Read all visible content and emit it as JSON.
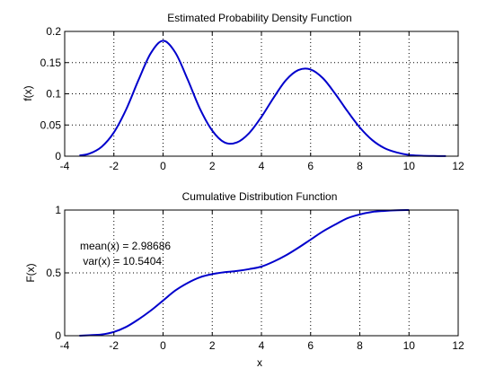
{
  "colors": {
    "line": "#0000cc",
    "axes": "#000000",
    "grid": "#000000",
    "background": "#ffffff"
  },
  "chart_data": [
    {
      "type": "line",
      "title": "Estimated Probability Density Function",
      "xlabel": "",
      "ylabel": "f(x)",
      "xlim": [
        -4,
        12
      ],
      "ylim": [
        0,
        0.2
      ],
      "xticks": [
        "-4",
        "-2",
        "0",
        "2",
        "4",
        "6",
        "8",
        "10",
        "12"
      ],
      "yticks": [
        "0",
        "0.05",
        "0.1",
        "0.15",
        "0.2"
      ],
      "grid": true,
      "series": [
        {
          "x": [
            -3.4,
            -3.0,
            -2.5,
            -2.0,
            -1.5,
            -1.0,
            -0.5,
            0.0,
            0.5,
            1.0,
            1.5,
            2.0,
            2.5,
            3.0,
            3.5,
            4.0,
            4.5,
            5.0,
            5.5,
            6.0,
            6.5,
            7.0,
            7.5,
            8.0,
            8.5,
            9.0,
            9.5,
            10.0,
            10.5,
            11.0,
            11.5
          ],
          "y": [
            0.001,
            0.004,
            0.015,
            0.038,
            0.075,
            0.122,
            0.165,
            0.185,
            0.166,
            0.123,
            0.076,
            0.041,
            0.022,
            0.022,
            0.037,
            0.063,
            0.094,
            0.122,
            0.138,
            0.139,
            0.125,
            0.1,
            0.072,
            0.046,
            0.026,
            0.013,
            0.006,
            0.002,
            0.0008,
            0.0003,
            0.0001
          ]
        }
      ]
    },
    {
      "type": "line",
      "title": "Cumulative Distribution Function",
      "xlabel": "x",
      "ylabel": "F(x)",
      "xlim": [
        -4,
        12
      ],
      "ylim": [
        0,
        1
      ],
      "xticks": [
        "-4",
        "-2",
        "0",
        "2",
        "4",
        "6",
        "8",
        "10",
        "12"
      ],
      "yticks": [
        "0",
        "0.5",
        "1"
      ],
      "grid": true,
      "annotations": [
        "mean(x) = 2.98686",
        " var(x) = 10.5404"
      ],
      "series": [
        {
          "x": [
            -3.4,
            -3.0,
            -2.5,
            -2.0,
            -1.5,
            -1.0,
            -0.5,
            0.0,
            0.5,
            1.0,
            1.5,
            2.0,
            2.5,
            3.0,
            3.5,
            4.0,
            4.5,
            5.0,
            5.5,
            6.0,
            6.5,
            7.0,
            7.5,
            8.0,
            8.5,
            9.0,
            9.5,
            10.0
          ],
          "y": [
            0.0,
            0.004,
            0.01,
            0.03,
            0.07,
            0.13,
            0.2,
            0.28,
            0.36,
            0.42,
            0.465,
            0.49,
            0.505,
            0.515,
            0.53,
            0.55,
            0.59,
            0.64,
            0.7,
            0.765,
            0.83,
            0.885,
            0.935,
            0.965,
            0.985,
            0.993,
            0.998,
            1.0
          ]
        }
      ]
    }
  ]
}
